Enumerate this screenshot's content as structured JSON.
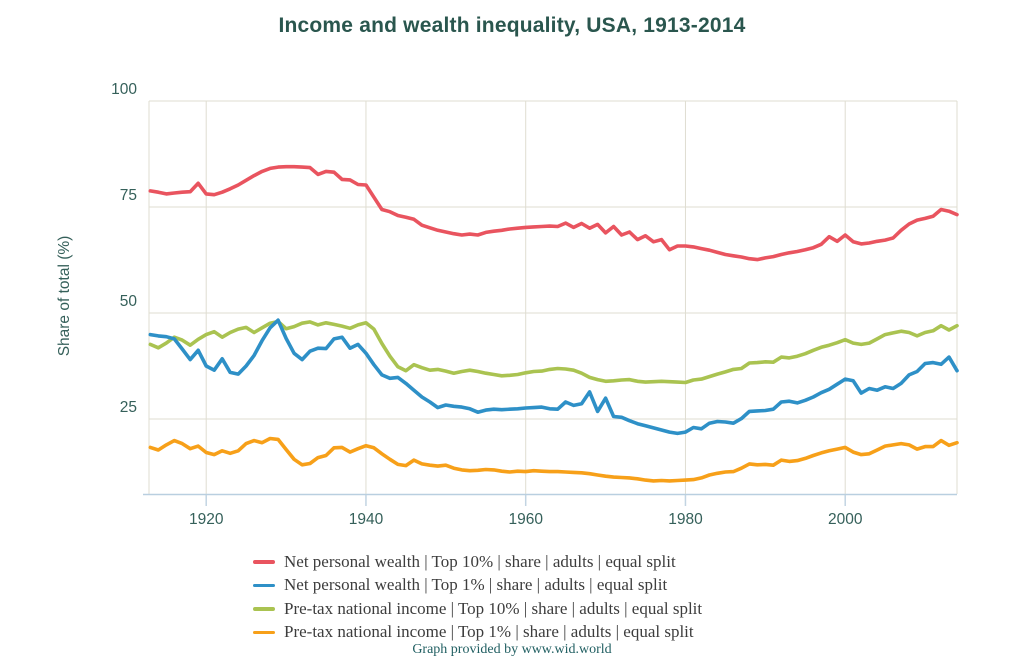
{
  "footer": {
    "prefix": "Graph provided by ",
    "link": "www.wid.world"
  },
  "colors": {
    "title_text": "#2a564e",
    "axis_text": "#35605a",
    "gridline": "#dfddd1",
    "plot_border": "#dfddd1",
    "baseline": "#b9cfe0",
    "tick_mark": "#c2d4e2",
    "legend_text": "#3d3d3d",
    "footer_text": "#215f62"
  },
  "chart_data": {
    "type": "line",
    "title": "Income and wealth inequality, USA, 1913-2014",
    "xlabel": "",
    "ylabel": "Share of total (%)",
    "x_start": 1913,
    "x_end": 2014,
    "x_ticks": [
      1920,
      1940,
      1960,
      1980,
      2000
    ],
    "y_ticks": [
      25,
      50,
      75,
      100
    ],
    "ylim": [
      7,
      101
    ],
    "grid": true,
    "legend_position": "bottom",
    "series": [
      {
        "name": "Net personal wealth | Top 10% | share | adults | equal split",
        "color": "#e9545f",
        "values": [
          78.8,
          78.5,
          78.1,
          78.3,
          78.5,
          78.6,
          80.6,
          78.1,
          77.9,
          78.5,
          79.3,
          80.2,
          81.3,
          82.4,
          83.4,
          84.1,
          84.4,
          84.5,
          84.5,
          84.4,
          84.3,
          82.7,
          83.4,
          83.2,
          81.5,
          81.4,
          80.3,
          80.2,
          77.3,
          74.4,
          73.9,
          73.0,
          72.6,
          72.1,
          70.7,
          70.1,
          69.5,
          69.1,
          68.7,
          68.4,
          68.6,
          68.4,
          69.0,
          69.3,
          69.5,
          69.8,
          70.0,
          70.2,
          70.3,
          70.4,
          70.5,
          70.4,
          71.2,
          70.2,
          71.1,
          70.0,
          70.9,
          68.9,
          70.4,
          68.4,
          69.1,
          67.3,
          68.2,
          66.8,
          67.3,
          64.9,
          65.8,
          65.8,
          65.6,
          65.2,
          64.8,
          64.3,
          63.8,
          63.5,
          63.2,
          62.8,
          62.6,
          63.0,
          63.3,
          63.8,
          64.2,
          64.5,
          64.9,
          65.4,
          66.2,
          68.0,
          66.9,
          68.4,
          66.8,
          66.3,
          66.5,
          66.9,
          67.2,
          67.7,
          69.5,
          71.0,
          71.9,
          72.3,
          72.8,
          74.4,
          74.0,
          73.2
        ]
      },
      {
        "name": "Net personal wealth | Top 1% | share | adults | equal split",
        "color": "#2e90c7",
        "values": [
          44.9,
          44.6,
          44.4,
          43.9,
          41.5,
          39.0,
          41.2,
          37.5,
          36.5,
          39.2,
          36.0,
          35.6,
          37.5,
          40.0,
          43.5,
          46.5,
          48.3,
          44.0,
          40.5,
          39.0,
          41.0,
          41.7,
          41.6,
          43.9,
          44.3,
          41.7,
          42.6,
          40.5,
          37.8,
          35.4,
          34.6,
          34.8,
          33.4,
          31.8,
          30.2,
          29.0,
          27.7,
          28.3,
          28.0,
          27.8,
          27.4,
          26.6,
          27.1,
          27.3,
          27.2,
          27.3,
          27.4,
          27.6,
          27.7,
          27.8,
          27.4,
          27.3,
          29.0,
          28.2,
          28.6,
          31.4,
          26.8,
          29.9,
          25.6,
          25.4,
          24.6,
          23.9,
          23.4,
          22.9,
          22.4,
          21.9,
          21.6,
          21.9,
          23.0,
          22.7,
          24.0,
          24.4,
          24.3,
          24.0,
          25.1,
          26.8,
          26.9,
          27.0,
          27.3,
          29.0,
          29.2,
          28.8,
          29.4,
          30.2,
          31.2,
          32.0,
          33.2,
          34.4,
          34.0,
          31.1,
          32.2,
          31.8,
          32.6,
          32.2,
          33.4,
          35.4,
          36.2,
          38.1,
          38.3,
          37.9,
          39.6,
          36.4
        ]
      },
      {
        "name": "Pre-tax national income | Top 10% | share | adults | equal split",
        "color": "#aac351",
        "values": [
          42.6,
          41.8,
          42.9,
          44.3,
          43.6,
          42.4,
          43.8,
          44.9,
          45.6,
          44.3,
          45.4,
          46.2,
          46.6,
          45.4,
          46.5,
          47.6,
          48.0,
          46.3,
          46.8,
          47.6,
          47.9,
          47.2,
          47.7,
          47.3,
          46.9,
          46.4,
          47.2,
          47.7,
          46.2,
          42.8,
          39.8,
          37.3,
          36.4,
          37.8,
          37.1,
          36.5,
          36.7,
          36.3,
          35.8,
          36.2,
          36.5,
          36.2,
          35.8,
          35.5,
          35.2,
          35.3,
          35.5,
          35.9,
          36.2,
          36.3,
          36.7,
          36.9,
          36.8,
          36.5,
          35.8,
          34.8,
          34.3,
          33.9,
          34.0,
          34.2,
          34.3,
          33.9,
          33.7,
          33.8,
          33.9,
          33.8,
          33.7,
          33.6,
          34.2,
          34.4,
          35.0,
          35.6,
          36.1,
          36.7,
          36.9,
          38.2,
          38.3,
          38.5,
          38.4,
          39.6,
          39.4,
          39.8,
          40.4,
          41.2,
          41.9,
          42.4,
          43.0,
          43.7,
          42.9,
          42.6,
          42.9,
          43.9,
          44.9,
          45.3,
          45.7,
          45.4,
          44.6,
          45.4,
          45.8,
          47.0,
          46.0,
          47.0
        ]
      },
      {
        "name": "Pre-tax national income | Top 1% | share | adults | equal split",
        "color": "#f7a019",
        "values": [
          18.3,
          17.7,
          18.9,
          19.9,
          19.2,
          18.0,
          18.6,
          17.1,
          16.6,
          17.5,
          16.9,
          17.5,
          19.2,
          19.9,
          19.4,
          20.4,
          20.2,
          17.8,
          15.5,
          14.2,
          14.5,
          15.9,
          16.4,
          18.2,
          18.3,
          17.2,
          18.0,
          18.7,
          18.2,
          16.8,
          15.5,
          14.3,
          14.0,
          15.3,
          14.4,
          14.1,
          13.9,
          14.1,
          13.4,
          13.0,
          12.8,
          12.9,
          13.1,
          13.0,
          12.7,
          12.5,
          12.7,
          12.6,
          12.8,
          12.7,
          12.6,
          12.6,
          12.5,
          12.4,
          12.3,
          12.1,
          11.8,
          11.5,
          11.3,
          11.2,
          11.1,
          10.9,
          10.6,
          10.4,
          10.5,
          10.4,
          10.5,
          10.6,
          10.7,
          11.1,
          11.8,
          12.2,
          12.5,
          12.6,
          13.4,
          14.4,
          14.2,
          14.3,
          14.1,
          15.3,
          15.0,
          15.2,
          15.7,
          16.4,
          17.0,
          17.5,
          17.9,
          18.3,
          17.2,
          16.6,
          16.8,
          17.7,
          18.6,
          18.9,
          19.2,
          18.9,
          17.9,
          18.5,
          18.5,
          19.9,
          18.8,
          19.4
        ]
      }
    ]
  }
}
